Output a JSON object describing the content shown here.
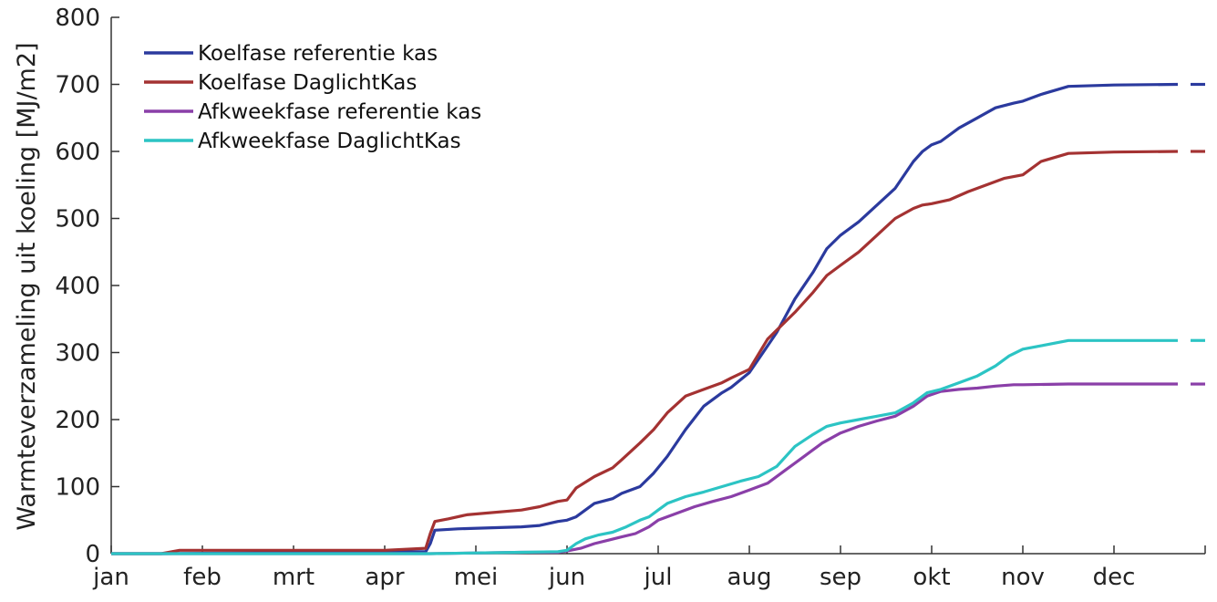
{
  "chart_data": {
    "type": "line",
    "xlabel": "",
    "ylabel": "Warmteverzameling uit koeling [MJ/m2]",
    "ylim": [
      0,
      800
    ],
    "xlim": [
      0,
      12
    ],
    "yticks": [
      0,
      100,
      200,
      300,
      400,
      500,
      600,
      700,
      800
    ],
    "xticks": [
      0,
      1,
      2,
      3,
      4,
      5,
      6,
      7,
      8,
      9,
      10,
      11
    ],
    "xtick_labels": [
      "jan",
      "feb",
      "mrt",
      "apr",
      "mei",
      "jun",
      "jul",
      "aug",
      "sep",
      "okt",
      "nov",
      "dec"
    ],
    "grid": false,
    "legend_position": "top-left",
    "extrapolation_start": 11.7,
    "series": [
      {
        "name": "Koelfase referentie kas",
        "color": "#2b3a9e",
        "x": [
          0,
          0.55,
          3.0,
          3.45,
          3.5,
          3.55,
          3.8,
          4.5,
          4.7,
          4.9,
          5.0,
          5.1,
          5.3,
          5.5,
          5.6,
          5.8,
          5.95,
          6.1,
          6.3,
          6.5,
          6.7,
          6.8,
          7.0,
          7.1,
          7.3,
          7.5,
          7.7,
          7.85,
          8.0,
          8.2,
          8.4,
          8.6,
          8.8,
          8.9,
          9.0,
          9.1,
          9.3,
          9.5,
          9.7,
          9.9,
          10.0,
          10.2,
          10.5,
          11.0,
          11.7
        ],
        "values": [
          0,
          0,
          3,
          3,
          15,
          35,
          37,
          40,
          42,
          48,
          50,
          55,
          75,
          82,
          90,
          100,
          120,
          145,
          185,
          220,
          240,
          248,
          270,
          290,
          330,
          380,
          420,
          455,
          475,
          495,
          520,
          545,
          585,
          600,
          610,
          615,
          635,
          650,
          665,
          672,
          675,
          685,
          697,
          699,
          700
        ]
      },
      {
        "name": "Koelfase DaglichtKas",
        "color": "#a43232",
        "x": [
          0,
          0.55,
          0.75,
          3.0,
          3.45,
          3.5,
          3.55,
          3.7,
          3.9,
          4.5,
          4.7,
          4.9,
          5.0,
          5.1,
          5.3,
          5.5,
          5.6,
          5.8,
          5.95,
          6.1,
          6.3,
          6.5,
          6.7,
          6.8,
          7.0,
          7.2,
          7.5,
          7.7,
          7.85,
          8.0,
          8.2,
          8.4,
          8.6,
          8.8,
          8.9,
          9.0,
          9.2,
          9.4,
          9.6,
          9.8,
          10.0,
          10.2,
          10.5,
          11.0,
          11.7
        ],
        "values": [
          0,
          0,
          5,
          5,
          8,
          30,
          48,
          52,
          58,
          65,
          70,
          78,
          80,
          98,
          115,
          128,
          140,
          165,
          185,
          210,
          235,
          245,
          255,
          262,
          275,
          320,
          360,
          390,
          415,
          430,
          450,
          475,
          500,
          515,
          520,
          522,
          528,
          540,
          550,
          560,
          565,
          585,
          597,
          599,
          600
        ]
      },
      {
        "name": "Afkweekfase referentie kas",
        "color": "#8a3fa8",
        "x": [
          0,
          3.5,
          4.5,
          4.9,
          5.0,
          5.15,
          5.3,
          5.45,
          5.6,
          5.75,
          5.9,
          6.0,
          6.2,
          6.4,
          6.6,
          6.8,
          7.0,
          7.2,
          7.4,
          7.6,
          7.8,
          8.0,
          8.2,
          8.4,
          8.6,
          8.8,
          8.95,
          9.1,
          9.3,
          9.5,
          9.7,
          9.9,
          10.0,
          10.5,
          11.0,
          11.7
        ],
        "values": [
          0,
          0,
          2,
          2,
          4,
          8,
          15,
          20,
          25,
          30,
          40,
          50,
          60,
          70,
          78,
          85,
          95,
          105,
          125,
          145,
          165,
          180,
          190,
          198,
          205,
          220,
          235,
          242,
          245,
          247,
          250,
          252,
          252,
          253,
          253,
          253
        ]
      },
      {
        "name": "Afkweekfase DaglichtKas",
        "color": "#2cc4c4",
        "x": [
          0,
          3.5,
          4.5,
          4.9,
          5.0,
          5.1,
          5.2,
          5.35,
          5.5,
          5.65,
          5.8,
          5.9,
          6.0,
          6.1,
          6.3,
          6.5,
          6.7,
          6.9,
          7.1,
          7.3,
          7.5,
          7.7,
          7.85,
          8.0,
          8.2,
          8.4,
          8.6,
          8.8,
          8.95,
          9.1,
          9.3,
          9.5,
          9.7,
          9.85,
          10.0,
          10.2,
          10.5,
          11.0,
          11.7
        ],
        "values": [
          0,
          0,
          2,
          3,
          5,
          15,
          22,
          28,
          32,
          40,
          50,
          55,
          65,
          75,
          85,
          92,
          100,
          108,
          115,
          130,
          160,
          178,
          190,
          195,
          200,
          205,
          210,
          225,
          240,
          245,
          255,
          265,
          280,
          295,
          305,
          310,
          318,
          318,
          318
        ]
      }
    ]
  }
}
